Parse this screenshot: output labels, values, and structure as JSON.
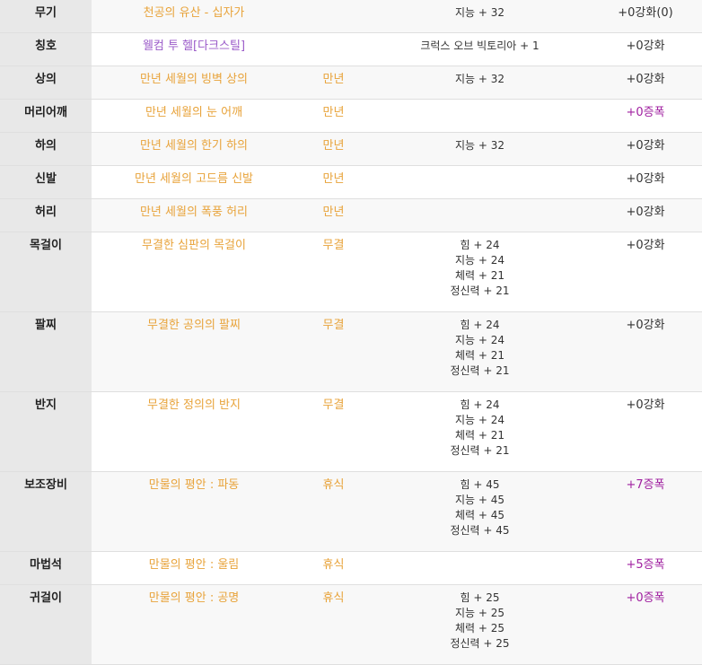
{
  "rows": [
    {
      "slot": "무기",
      "name": "천공의 유산 - 십자가",
      "name_color": "orange",
      "tier": "",
      "stats": [
        "지능 + 32"
      ],
      "enhance": "+0강화(0)",
      "enhance_color": "dark"
    },
    {
      "slot": "칭호",
      "name": "웰컴 투 헬[다크스틸]",
      "name_color": "purple",
      "tier": "",
      "stats": [
        "크럭스 오브 빅토리아 + 1"
      ],
      "enhance": "+0강화",
      "enhance_color": "dark"
    },
    {
      "slot": "상의",
      "name": "만년 세월의 빙벽 상의",
      "name_color": "orange",
      "tier": "만년",
      "stats": [
        "지능 + 32"
      ],
      "enhance": "+0강화",
      "enhance_color": "dark"
    },
    {
      "slot": "머리어깨",
      "name": "만년 세월의 눈 어깨",
      "name_color": "orange",
      "tier": "만년",
      "stats": [],
      "enhance": "+0증폭",
      "enhance_color": "purple"
    },
    {
      "slot": "하의",
      "name": "만년 세월의 한기 하의",
      "name_color": "orange",
      "tier": "만년",
      "stats": [
        "지능 + 32"
      ],
      "enhance": "+0강화",
      "enhance_color": "dark"
    },
    {
      "slot": "신발",
      "name": "만년 세월의 고드름 신발",
      "name_color": "orange",
      "tier": "만년",
      "stats": [],
      "enhance": "+0강화",
      "enhance_color": "dark"
    },
    {
      "slot": "허리",
      "name": "만년 세월의 폭풍 허리",
      "name_color": "orange",
      "tier": "만년",
      "stats": [],
      "enhance": "+0강화",
      "enhance_color": "dark"
    },
    {
      "slot": "목걸이",
      "name": "무결한 심판의 목걸이",
      "name_color": "orange",
      "tier": "무결",
      "stats": [
        "힘 + 24",
        "지능 + 24",
        "체력 + 21",
        "정신력 + 21"
      ],
      "enhance": "+0강화",
      "enhance_color": "dark"
    },
    {
      "slot": "팔찌",
      "name": "무결한 공의의 팔찌",
      "name_color": "orange",
      "tier": "무결",
      "stats": [
        "힘 + 24",
        "지능 + 24",
        "체력 + 21",
        "정신력 + 21"
      ],
      "enhance": "+0강화",
      "enhance_color": "dark"
    },
    {
      "slot": "반지",
      "name": "무결한 정의의 반지",
      "name_color": "orange",
      "tier": "무결",
      "stats": [
        "힘 + 24",
        "지능 + 24",
        "체력 + 21",
        "정신력 + 21"
      ],
      "enhance": "+0강화",
      "enhance_color": "dark"
    },
    {
      "slot": "보조장비",
      "name": "만물의 평안 : 파동",
      "name_color": "orange",
      "tier": "휴식",
      "stats": [
        "힘 + 45",
        "지능 + 45",
        "체력 + 45",
        "정신력 + 45"
      ],
      "enhance": "+7증폭",
      "enhance_color": "purple"
    },
    {
      "slot": "마법석",
      "name": "만물의 평안 : 울림",
      "name_color": "orange",
      "tier": "휴식",
      "stats": [],
      "enhance": "+5증폭",
      "enhance_color": "purple"
    },
    {
      "slot": "귀걸이",
      "name": "만물의 평안 : 공명",
      "name_color": "orange",
      "tier": "휴식",
      "stats": [
        "힘 + 25",
        "지능 + 25",
        "체력 + 25",
        "정신력 + 25"
      ],
      "enhance": "+0증폭",
      "enhance_color": "purple"
    }
  ],
  "colors": {
    "orange": "#e8a33a",
    "purple_name": "#9b5bc9",
    "purple_enhance": "#a020a0",
    "slot_bg": "#e8e8e8",
    "row_alt_bg": "#f8f8f8",
    "border": "#dfdfdf"
  }
}
